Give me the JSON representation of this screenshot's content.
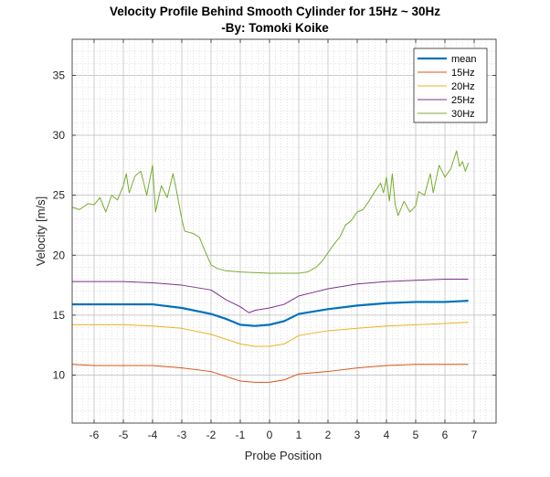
{
  "chart_data": {
    "type": "line",
    "title": "Velocity Profile Behind Smooth Cylinder for 15Hz ~ 30Hz",
    "subtitle": "-By: Tomoki Koike",
    "xlabel": "Probe Position",
    "ylabel": "Velocity [m/s]",
    "xlim": [
      -6.75,
      7.75
    ],
    "ylim": [
      6,
      38
    ],
    "xticks": [
      "-6",
      "-5",
      "-4",
      "-3",
      "-2",
      "-1",
      "0",
      "1",
      "2",
      "3",
      "4",
      "5",
      "6",
      "7"
    ],
    "yticks": [
      "10",
      "15",
      "20",
      "25",
      "30",
      "35"
    ],
    "grid": true,
    "minor_grid": true,
    "legend_position": "top-right",
    "series": [
      {
        "name": "mean",
        "color": "#0072BD",
        "width": 2.2,
        "points": [
          [
            -6.75,
            15.9
          ],
          [
            -6,
            15.9
          ],
          [
            -5,
            15.9
          ],
          [
            -4,
            15.9
          ],
          [
            -3,
            15.6
          ],
          [
            -2,
            15.1
          ],
          [
            -1.5,
            14.7
          ],
          [
            -1,
            14.2
          ],
          [
            -0.5,
            14.1
          ],
          [
            0,
            14.2
          ],
          [
            0.5,
            14.5
          ],
          [
            1,
            15.1
          ],
          [
            1.5,
            15.3
          ],
          [
            2,
            15.5
          ],
          [
            3,
            15.8
          ],
          [
            4,
            16.0
          ],
          [
            5,
            16.1
          ],
          [
            6,
            16.1
          ],
          [
            6.8,
            16.2
          ]
        ]
      },
      {
        "name": "15Hz",
        "color": "#D95319",
        "width": 1,
        "points": [
          [
            -6.75,
            10.9
          ],
          [
            -6,
            10.8
          ],
          [
            -5,
            10.8
          ],
          [
            -4,
            10.8
          ],
          [
            -3,
            10.6
          ],
          [
            -2,
            10.3
          ],
          [
            -1.5,
            9.9
          ],
          [
            -1,
            9.5
          ],
          [
            -0.5,
            9.4
          ],
          [
            0,
            9.4
          ],
          [
            0.5,
            9.6
          ],
          [
            1,
            10.1
          ],
          [
            1.5,
            10.2
          ],
          [
            2,
            10.3
          ],
          [
            3,
            10.6
          ],
          [
            4,
            10.8
          ],
          [
            5,
            10.9
          ],
          [
            6,
            10.9
          ],
          [
            6.8,
            10.9
          ]
        ]
      },
      {
        "name": "20Hz",
        "color": "#EDB120",
        "width": 1,
        "points": [
          [
            -6.75,
            14.2
          ],
          [
            -6,
            14.2
          ],
          [
            -5,
            14.2
          ],
          [
            -4,
            14.1
          ],
          [
            -3,
            13.9
          ],
          [
            -2,
            13.4
          ],
          [
            -1.5,
            13.0
          ],
          [
            -1,
            12.6
          ],
          [
            -0.5,
            12.4
          ],
          [
            0,
            12.4
          ],
          [
            0.5,
            12.6
          ],
          [
            1,
            13.3
          ],
          [
            1.5,
            13.5
          ],
          [
            2,
            13.7
          ],
          [
            3,
            13.9
          ],
          [
            4,
            14.1
          ],
          [
            5,
            14.2
          ],
          [
            6,
            14.3
          ],
          [
            6.8,
            14.4
          ]
        ]
      },
      {
        "name": "25Hz",
        "color": "#7E2F8E",
        "width": 1,
        "points": [
          [
            -6.75,
            17.8
          ],
          [
            -6,
            17.8
          ],
          [
            -5,
            17.8
          ],
          [
            -4,
            17.7
          ],
          [
            -3,
            17.5
          ],
          [
            -2,
            17.1
          ],
          [
            -1.5,
            16.3
          ],
          [
            -1,
            15.7
          ],
          [
            -0.7,
            15.2
          ],
          [
            -0.5,
            15.4
          ],
          [
            0,
            15.6
          ],
          [
            0.5,
            15.9
          ],
          [
            1,
            16.6
          ],
          [
            1.5,
            16.9
          ],
          [
            2,
            17.2
          ],
          [
            3,
            17.6
          ],
          [
            4,
            17.8
          ],
          [
            5,
            17.9
          ],
          [
            6,
            18.0
          ],
          [
            6.8,
            18.0
          ]
        ]
      },
      {
        "name": "30Hz",
        "color": "#77AC30",
        "width": 1,
        "points": [
          [
            -6.75,
            24.0
          ],
          [
            -6.5,
            23.8
          ],
          [
            -6.2,
            24.3
          ],
          [
            -6,
            24.2
          ],
          [
            -5.8,
            24.8
          ],
          [
            -5.6,
            23.6
          ],
          [
            -5.4,
            25.0
          ],
          [
            -5.2,
            24.6
          ],
          [
            -5,
            25.8
          ],
          [
            -4.9,
            26.8
          ],
          [
            -4.8,
            25.2
          ],
          [
            -4.6,
            26.6
          ],
          [
            -4.4,
            27.0
          ],
          [
            -4.2,
            25.0
          ],
          [
            -4.0,
            27.5
          ],
          [
            -3.9,
            23.6
          ],
          [
            -3.7,
            25.8
          ],
          [
            -3.5,
            24.8
          ],
          [
            -3.3,
            26.8
          ],
          [
            -3.2,
            25.6
          ],
          [
            -3.0,
            23.0
          ],
          [
            -2.9,
            22.0
          ],
          [
            -2.6,
            21.8
          ],
          [
            -2.4,
            21.5
          ],
          [
            -2.2,
            20.3
          ],
          [
            -2.0,
            19.2
          ],
          [
            -1.8,
            18.9
          ],
          [
            -1.5,
            18.7
          ],
          [
            -1.0,
            18.6
          ],
          [
            0,
            18.5
          ],
          [
            1.0,
            18.5
          ],
          [
            1.3,
            18.6
          ],
          [
            1.6,
            19.0
          ],
          [
            1.8,
            19.5
          ],
          [
            2.0,
            20.2
          ],
          [
            2.2,
            20.9
          ],
          [
            2.4,
            21.5
          ],
          [
            2.6,
            22.5
          ],
          [
            2.8,
            22.9
          ],
          [
            3.0,
            23.6
          ],
          [
            3.2,
            23.8
          ],
          [
            3.4,
            24.5
          ],
          [
            3.6,
            25.3
          ],
          [
            3.8,
            26.0
          ],
          [
            3.9,
            25.2
          ],
          [
            4.0,
            26.5
          ],
          [
            4.1,
            24.5
          ],
          [
            4.2,
            26.8
          ],
          [
            4.3,
            24.2
          ],
          [
            4.4,
            23.3
          ],
          [
            4.6,
            24.5
          ],
          [
            4.8,
            23.6
          ],
          [
            5.0,
            24.1
          ],
          [
            5.1,
            25.3
          ],
          [
            5.3,
            25.0
          ],
          [
            5.5,
            26.8
          ],
          [
            5.6,
            25.2
          ],
          [
            5.8,
            27.5
          ],
          [
            6.0,
            26.5
          ],
          [
            6.2,
            27.2
          ],
          [
            6.4,
            28.7
          ],
          [
            6.5,
            27.4
          ],
          [
            6.6,
            27.8
          ],
          [
            6.7,
            27.0
          ],
          [
            6.8,
            27.7
          ]
        ]
      }
    ]
  }
}
